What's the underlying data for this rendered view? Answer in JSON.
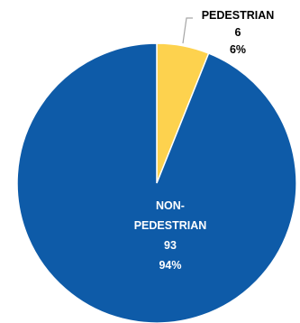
{
  "chart_data": {
    "type": "pie",
    "title": "",
    "slices": [
      {
        "label": "PEDESTRIAN",
        "count": "6",
        "percent_text": "6%",
        "value": 6,
        "color": "#FDD24E",
        "label_color": "#000000"
      },
      {
        "label": "NON-PEDESTRIAN",
        "label_lines": [
          "NON-",
          "PEDESTRIAN"
        ],
        "count": "93",
        "percent_text": "94%",
        "value": 93,
        "color": "#0E5BA8",
        "label_color": "#FFFFFF"
      }
    ],
    "start_angle_deg": 0,
    "direction": "clockwise",
    "slice_border_color": "#FFFFFF",
    "leader_line_color": "#A6A6A6"
  }
}
